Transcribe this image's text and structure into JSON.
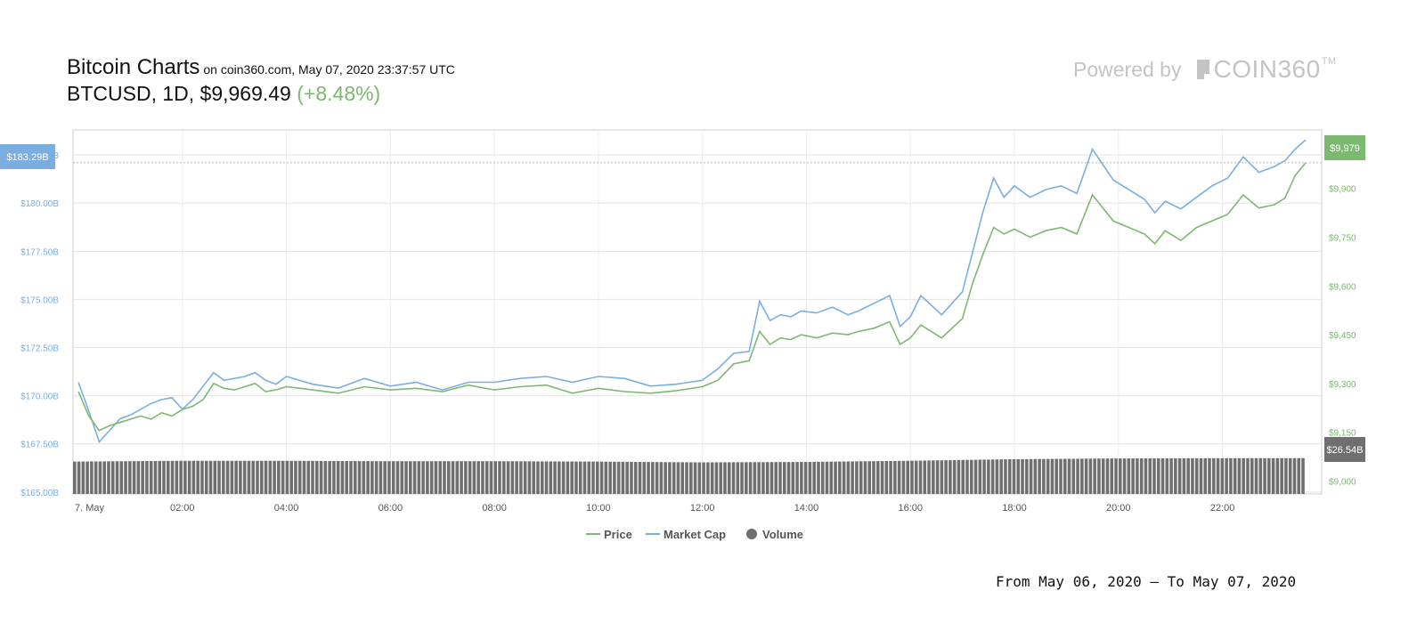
{
  "header": {
    "title": "Bitcoin Charts",
    "source": "on coin360.com, May 07, 2020 23:37:57 UTC",
    "pair": "BTCUSD",
    "interval": "1D",
    "price": "$9,969.49",
    "change": "(+8.48%)"
  },
  "brand": {
    "powered": "Powered by",
    "name": "COIN360",
    "tm": "TM"
  },
  "footer": {
    "range": "From May 06, 2020 – To May 07, 2020"
  },
  "colors": {
    "price": "#7cb870",
    "market_cap": "#7aaee0",
    "volume": "#6f6f6f",
    "change": "#7cb870"
  },
  "chart_data": {
    "type": "line",
    "x_labels": [
      "7. May",
      "02:00",
      "04:00",
      "06:00",
      "08:00",
      "10:00",
      "12:00",
      "14:00",
      "16:00",
      "18:00",
      "20:00",
      "22:00"
    ],
    "left_axis": {
      "ticks": [
        "$165.00B",
        "$167.50B",
        "$170.00B",
        "$172.50B",
        "$175.00B",
        "$177.50B",
        "$180.00B",
        "$182.50B"
      ],
      "range": [
        164.9,
        183.8
      ]
    },
    "right_axis": {
      "ticks": [
        "$9,000",
        "$9,150",
        "$9,300",
        "$9,450",
        "$9,600",
        "$9,750",
        "$9,900"
      ],
      "range": [
        8960,
        10080
      ]
    },
    "current_labels": {
      "market_cap": "$183.29B",
      "price": "$9,979",
      "volume": "$26.54B"
    },
    "legend": [
      "Price",
      "Market Cap",
      "Volume"
    ],
    "grid": true,
    "series": [
      {
        "name": "Price",
        "x_hours": [
          0,
          0.2,
          0.4,
          0.6,
          0.8,
          1,
          1.2,
          1.4,
          1.6,
          1.8,
          2,
          2.2,
          2.4,
          2.6,
          2.8,
          3,
          3.2,
          3.4,
          3.6,
          3.8,
          4,
          4.5,
          5,
          5.5,
          6,
          6.5,
          7,
          7.5,
          8,
          8.5,
          9,
          9.5,
          10,
          10.5,
          11,
          11.5,
          12,
          12.3,
          12.6,
          12.9,
          13.1,
          13.3,
          13.5,
          13.7,
          13.9,
          14.2,
          14.5,
          14.8,
          15,
          15.3,
          15.6,
          15.8,
          16,
          16.2,
          16.4,
          16.6,
          16.8,
          17,
          17.2,
          17.4,
          17.6,
          17.8,
          18,
          18.3,
          18.6,
          18.9,
          19.2,
          19.5,
          19.7,
          19.9,
          20.2,
          20.5,
          20.7,
          20.9,
          21.2,
          21.5,
          21.8,
          22.1,
          22.4,
          22.7,
          23,
          23.2,
          23.4,
          23.6
        ],
        "values": [
          9275,
          9200,
          9155,
          9170,
          9180,
          9190,
          9200,
          9190,
          9210,
          9200,
          9220,
          9230,
          9250,
          9300,
          9285,
          9280,
          9290,
          9300,
          9275,
          9280,
          9290,
          9280,
          9270,
          9290,
          9280,
          9285,
          9275,
          9295,
          9280,
          9290,
          9295,
          9270,
          9285,
          9275,
          9270,
          9278,
          9290,
          9310,
          9360,
          9370,
          9460,
          9420,
          9440,
          9435,
          9450,
          9440,
          9455,
          9450,
          9460,
          9470,
          9490,
          9420,
          9440,
          9480,
          9460,
          9440,
          9470,
          9500,
          9610,
          9700,
          9780,
          9760,
          9775,
          9750,
          9770,
          9780,
          9760,
          9880,
          9840,
          9800,
          9780,
          9760,
          9730,
          9770,
          9740,
          9780,
          9800,
          9820,
          9880,
          9840,
          9850,
          9870,
          9940,
          9979
        ]
      },
      {
        "name": "Market Cap",
        "x_hours": [
          0,
          0.2,
          0.4,
          0.6,
          0.8,
          1,
          1.2,
          1.4,
          1.6,
          1.8,
          2,
          2.2,
          2.4,
          2.6,
          2.8,
          3,
          3.2,
          3.4,
          3.6,
          3.8,
          4,
          4.5,
          5,
          5.5,
          6,
          6.5,
          7,
          7.5,
          8,
          8.5,
          9,
          9.5,
          10,
          10.5,
          11,
          11.5,
          12,
          12.3,
          12.6,
          12.9,
          13.1,
          13.3,
          13.5,
          13.7,
          13.9,
          14.2,
          14.5,
          14.8,
          15,
          15.3,
          15.6,
          15.8,
          16,
          16.2,
          16.4,
          16.6,
          16.8,
          17,
          17.2,
          17.4,
          17.6,
          17.8,
          18,
          18.3,
          18.6,
          18.9,
          19.2,
          19.5,
          19.7,
          19.9,
          20.2,
          20.5,
          20.7,
          20.9,
          21.2,
          21.5,
          21.8,
          22.1,
          22.4,
          22.7,
          23,
          23.2,
          23.4,
          23.6
        ],
        "values": [
          170.7,
          169.2,
          167.6,
          168.2,
          168.8,
          169.0,
          169.3,
          169.6,
          169.8,
          169.9,
          169.3,
          169.8,
          170.5,
          171.2,
          170.8,
          170.9,
          171.0,
          171.2,
          170.8,
          170.6,
          171.0,
          170.6,
          170.4,
          170.9,
          170.5,
          170.7,
          170.3,
          170.7,
          170.7,
          170.9,
          171.0,
          170.7,
          171.0,
          170.9,
          170.5,
          170.6,
          170.8,
          171.4,
          172.2,
          172.3,
          174.9,
          173.9,
          174.2,
          174.1,
          174.4,
          174.3,
          174.6,
          174.2,
          174.4,
          174.8,
          175.2,
          173.6,
          174.1,
          175.2,
          174.7,
          174.2,
          174.8,
          175.4,
          177.5,
          179.6,
          181.3,
          180.3,
          180.9,
          180.3,
          180.7,
          180.9,
          180.5,
          182.8,
          182.0,
          181.2,
          180.7,
          180.2,
          179.5,
          180.1,
          179.7,
          180.3,
          180.9,
          181.3,
          182.4,
          181.6,
          181.9,
          182.2,
          182.8,
          183.29
        ]
      },
      {
        "name": "Volume",
        "x_hours": [
          0,
          2,
          4,
          6,
          8,
          10,
          12,
          14,
          16,
          18,
          20,
          22,
          23.6
        ],
        "values": [
          26.1,
          26.2,
          26.2,
          26.15,
          26.15,
          26.1,
          26.0,
          26.05,
          26.2,
          26.4,
          26.5,
          26.53,
          26.54
        ]
      }
    ]
  }
}
